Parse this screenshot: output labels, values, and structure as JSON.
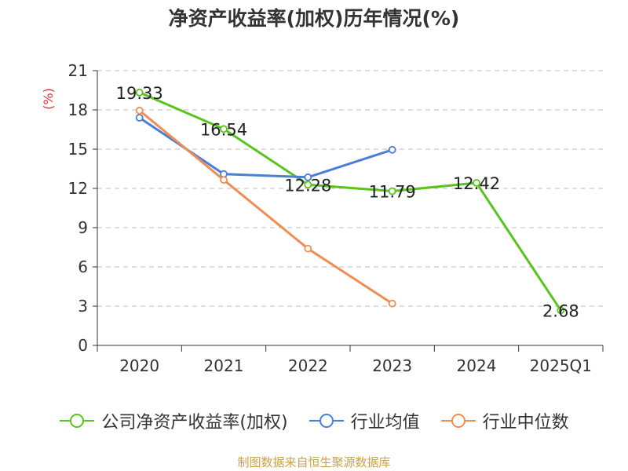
{
  "chart_data": {
    "type": "line",
    "title": "净资产收益率(加权)历年情况(%)",
    "ylabel": "(%)",
    "categories": [
      "2020",
      "2021",
      "2022",
      "2023",
      "2024",
      "2025Q1"
    ],
    "ylim": [
      0,
      21
    ],
    "yticks": [
      0,
      3,
      6,
      9,
      12,
      15,
      18,
      21
    ],
    "grid": true,
    "legend_position": "bottom",
    "series": [
      {
        "name": "公司净资产收益率(加权)",
        "color": "#5ac41e",
        "values": [
          19.33,
          16.54,
          12.28,
          11.79,
          12.42,
          2.68
        ],
        "labels": true
      },
      {
        "name": "行业均值",
        "color": "#4a7fd6",
        "values": [
          17.4,
          13.1,
          12.85,
          14.95,
          null,
          null
        ],
        "labels": false
      },
      {
        "name": "行业中位数",
        "color": "#f28c55",
        "values": [
          17.95,
          12.65,
          7.4,
          3.2,
          null,
          null
        ],
        "labels": false
      }
    ]
  },
  "source_note": "制图数据来自恒生聚源数据库"
}
